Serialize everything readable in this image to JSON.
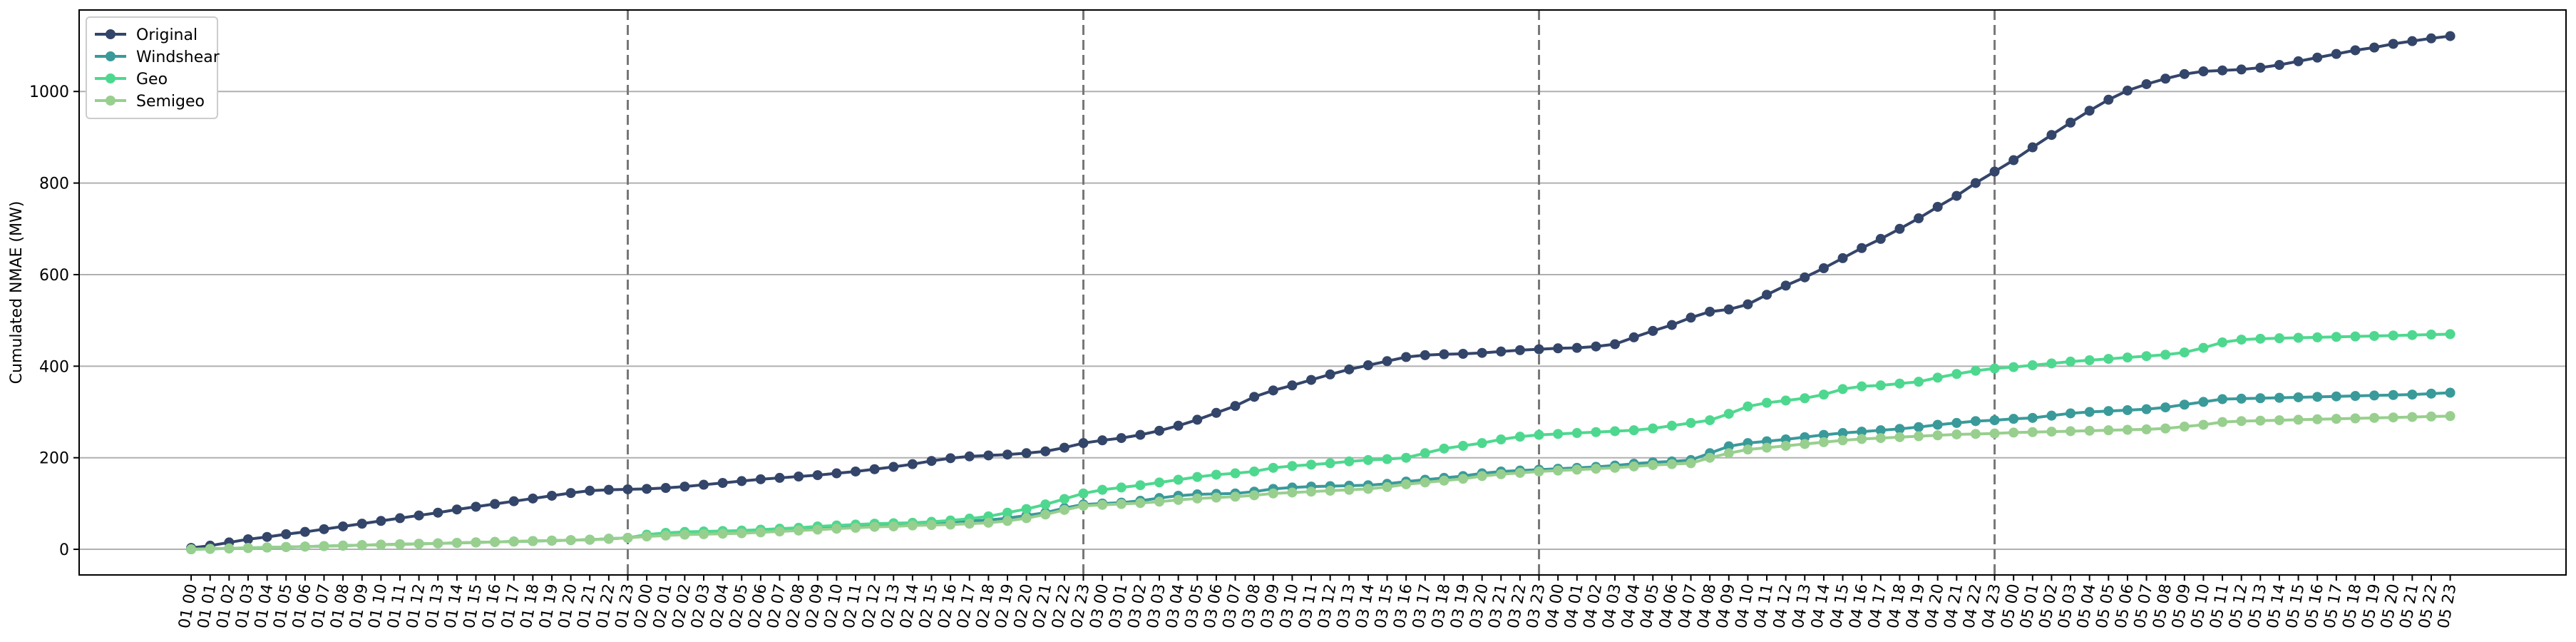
{
  "chart_data": {
    "type": "line",
    "y_label": "Cumulated NMAE (MW)",
    "categories": [
      "01 00",
      "01 01",
      "01 02",
      "01 03",
      "01 04",
      "01 05",
      "01 06",
      "01 07",
      "01 08",
      "01 09",
      "01 10",
      "01 11",
      "01 12",
      "01 13",
      "01 14",
      "01 15",
      "01 16",
      "01 17",
      "01 18",
      "01 19",
      "01 20",
      "01 21",
      "01 22",
      "01 23",
      "02 00",
      "02 01",
      "02 02",
      "02 03",
      "02 04",
      "02 05",
      "02 06",
      "02 07",
      "02 08",
      "02 09",
      "02 10",
      "02 11",
      "02 12",
      "02 13",
      "02 14",
      "02 15",
      "02 16",
      "02 17",
      "02 18",
      "02 19",
      "02 20",
      "02 21",
      "02 22",
      "02 23",
      "03 00",
      "03 01",
      "03 02",
      "03 03",
      "03 04",
      "03 05",
      "03 06",
      "03 07",
      "03 08",
      "03 09",
      "03 10",
      "03 11",
      "03 12",
      "03 13",
      "03 14",
      "03 15",
      "03 16",
      "03 17",
      "03 18",
      "03 19",
      "03 20",
      "03 21",
      "03 22",
      "03 23",
      "04 00",
      "04 01",
      "04 02",
      "04 03",
      "04 04",
      "04 05",
      "04 06",
      "04 07",
      "04 08",
      "04 09",
      "04 10",
      "04 11",
      "04 12",
      "04 13",
      "04 14",
      "04 15",
      "04 16",
      "04 17",
      "04 18",
      "04 19",
      "04 20",
      "04 21",
      "04 22",
      "04 23",
      "05 00",
      "05 01",
      "05 02",
      "05 03",
      "05 04",
      "05 05",
      "05 06",
      "05 07",
      "05 08",
      "05 09",
      "05 10",
      "05 11",
      "05 12",
      "05 13",
      "05 14",
      "05 15",
      "05 16",
      "05 17",
      "05 18",
      "05 19",
      "05 20",
      "05 21",
      "05 22",
      "05 23"
    ],
    "series": [
      {
        "name": "Original",
        "color": "#34456a",
        "values": [
          3,
          8,
          15,
          22,
          27,
          33,
          38,
          44,
          50,
          56,
          62,
          68,
          74,
          80,
          87,
          93,
          99,
          105,
          111,
          117,
          123,
          128,
          130,
          131,
          132,
          134,
          137,
          141,
          145,
          149,
          153,
          156,
          159,
          162,
          166,
          170,
          175,
          180,
          186,
          193,
          199,
          203,
          205,
          207,
          210,
          214,
          222,
          232,
          238,
          243,
          250,
          259,
          270,
          283,
          298,
          313,
          333,
          347,
          358,
          370,
          382,
          393,
          402,
          411,
          420,
          424,
          426,
          427,
          429,
          432,
          435,
          437,
          439,
          440,
          443,
          448,
          463,
          477,
          490,
          506,
          519,
          524,
          535,
          556,
          576,
          594,
          614,
          636,
          658,
          678,
          700,
          723,
          748,
          772,
          800,
          825,
          850,
          878,
          905,
          932,
          958,
          982,
          1002,
          1016,
          1028,
          1038,
          1044,
          1046,
          1048,
          1052,
          1058,
          1066,
          1074,
          1082,
          1090,
          1096,
          1104,
          1110,
          1116,
          1121
        ]
      },
      {
        "name": "Windshear",
        "color": "#3a9a9a",
        "values": [
          0,
          1,
          2,
          3,
          4,
          5,
          6,
          7,
          8,
          9,
          10,
          11,
          12,
          13,
          14,
          15,
          16,
          17,
          18,
          19,
          20,
          21,
          23,
          25,
          30,
          33,
          35,
          37,
          38,
          40,
          42,
          44,
          46,
          48,
          50,
          52,
          53,
          55,
          57,
          58,
          60,
          62,
          64,
          68,
          74,
          80,
          90,
          98,
          100,
          102,
          106,
          112,
          117,
          120,
          121,
          122,
          126,
          132,
          135,
          137,
          138,
          139,
          140,
          143,
          148,
          152,
          156,
          160,
          166,
          170,
          172,
          174,
          176,
          178,
          180,
          183,
          187,
          190,
          192,
          195,
          210,
          225,
          232,
          236,
          240,
          245,
          250,
          254,
          257,
          260,
          263,
          267,
          272,
          276,
          280,
          282,
          285,
          287,
          292,
          297,
          300,
          302,
          304,
          306,
          310,
          316,
          322,
          328,
          329,
          330,
          331,
          332,
          333,
          334,
          335,
          336,
          337,
          338,
          340,
          342
        ]
      },
      {
        "name": "Geo",
        "color": "#4ed88f",
        "values": [
          0,
          1,
          2,
          3,
          4,
          5,
          6,
          7,
          8,
          9,
          10,
          11,
          12,
          13,
          14,
          15,
          16,
          17,
          18,
          19,
          20,
          21,
          23,
          25,
          32,
          36,
          38,
          39,
          40,
          41,
          43,
          45,
          47,
          50,
          52,
          54,
          56,
          57,
          58,
          60,
          63,
          67,
          72,
          80,
          88,
          98,
          110,
          122,
          130,
          135,
          140,
          146,
          152,
          158,
          163,
          166,
          170,
          178,
          182,
          185,
          188,
          192,
          195,
          197,
          200,
          210,
          220,
          226,
          232,
          240,
          246,
          250,
          252,
          254,
          256,
          258,
          260,
          264,
          270,
          276,
          282,
          296,
          312,
          320,
          325,
          330,
          338,
          350,
          356,
          358,
          362,
          366,
          375,
          383,
          390,
          395,
          398,
          402,
          406,
          410,
          413,
          416,
          419,
          422,
          425,
          430,
          440,
          452,
          458,
          460,
          461,
          462,
          463,
          464,
          465,
          466,
          467,
          468,
          469,
          470
        ]
      },
      {
        "name": "Semigeo",
        "color": "#98cf8e",
        "values": [
          0,
          1,
          2,
          3,
          4,
          5,
          6,
          7,
          8,
          9,
          10,
          11,
          12,
          13,
          14,
          15,
          16,
          17,
          18,
          19,
          20,
          21,
          23,
          25,
          28,
          30,
          32,
          33,
          34,
          35,
          37,
          39,
          41,
          43,
          45,
          47,
          49,
          50,
          52,
          53,
          54,
          56,
          58,
          62,
          68,
          76,
          86,
          95,
          97,
          99,
          101,
          104,
          108,
          111,
          113,
          115,
          118,
          122,
          124,
          126,
          128,
          130,
          132,
          136,
          142,
          146,
          150,
          154,
          160,
          164,
          167,
          170,
          172,
          174,
          176,
          178,
          181,
          184,
          186,
          188,
          200,
          210,
          218,
          222,
          226,
          230,
          234,
          238,
          241,
          243,
          245,
          247,
          249,
          251,
          252,
          253,
          255,
          256,
          257,
          258,
          259,
          260,
          261,
          262,
          264,
          268,
          272,
          278,
          280,
          281,
          282,
          283,
          284,
          285,
          286,
          287,
          288,
          289,
          290,
          291
        ]
      }
    ],
    "ylim": [
      -56,
      1178
    ],
    "yticks": [
      0,
      200,
      400,
      600,
      800,
      1000
    ],
    "grid": true,
    "vlines": [
      23,
      47,
      71,
      95
    ],
    "legend": "upper left"
  }
}
